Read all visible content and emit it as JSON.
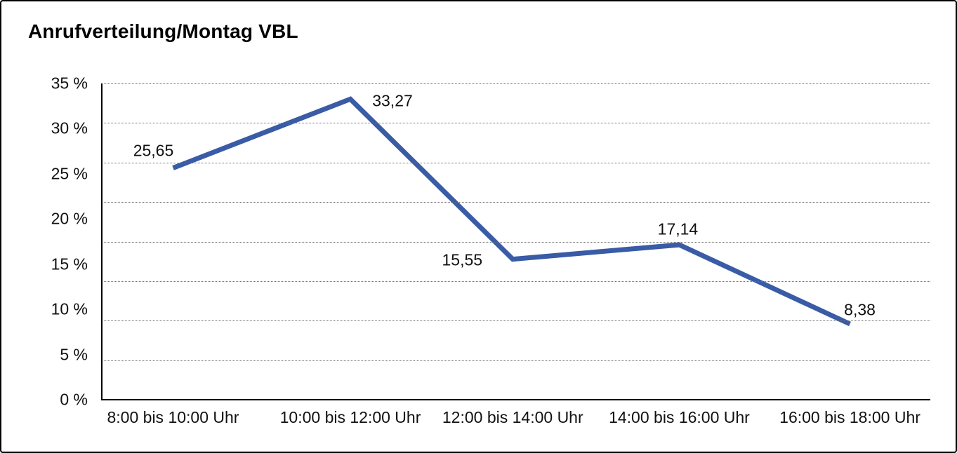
{
  "window": {
    "title": "Anrufverteilung/Montag VBL"
  },
  "chart_data": {
    "type": "line",
    "title": "Anrufverteilung/Montag VBL",
    "categories": [
      "8:00 bis 10:00 Uhr",
      "10:00 bis 12:00 Uhr",
      "12:00 bis 14:00 Uhr",
      "14:00 bis 16:00 Uhr",
      "16:00 bis 18:00 Uhr"
    ],
    "values": [
      25.65,
      33.27,
      15.55,
      17.14,
      8.38
    ],
    "value_labels": [
      "25,65",
      "33,27",
      "15,55",
      "17,14",
      "8,38"
    ],
    "y_ticks": [
      "35 %",
      "30 %",
      "25 %",
      "20 %",
      "15 %",
      "10 %",
      "5 %",
      "0 %"
    ],
    "ylim": [
      0,
      35
    ],
    "xlabel": "",
    "ylabel": "",
    "legend": "none",
    "grid": "dotted-horizontal",
    "colors": {
      "line": "#3A5BA5",
      "axis": "#000000",
      "gridline": "#6e6e6e",
      "text": "#111111",
      "background": "#ffffff",
      "border": "#000000"
    }
  }
}
